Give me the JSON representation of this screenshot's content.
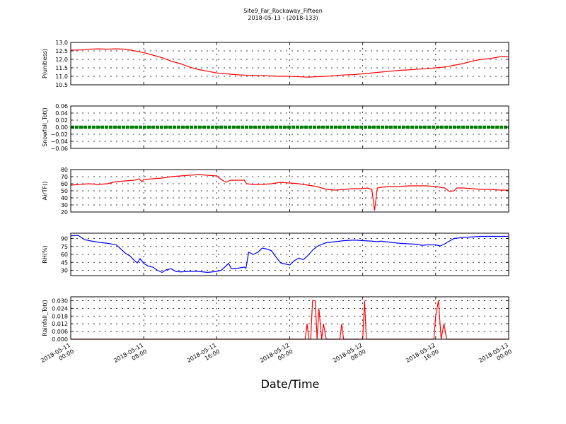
{
  "figure": {
    "title_line1": "Site9_Far_Rockaway_Fifteen",
    "title_line2": "2018-05-13 - (2018-133)",
    "xlabel": "Date/Time"
  },
  "chart_data": {
    "type": "line",
    "x_tick_labels": [
      [
        "2018-05-11",
        "00:00"
      ],
      [
        "2018-05-11",
        "08:00"
      ],
      [
        "2018-05-11",
        "16:00"
      ],
      [
        "2018-05-12",
        "00:00"
      ],
      [
        "2018-05-12",
        "08:00"
      ],
      [
        "2018-05-12",
        "16:00"
      ],
      [
        "2018-05-13",
        "00:00"
      ]
    ],
    "x_range_hours": [
      0,
      48
    ],
    "grid": true,
    "panels": [
      {
        "ylabel": "P(unitless)",
        "ylim": [
          10.5,
          13.0
        ],
        "yticks": [
          "10.5",
          "11.0",
          "11.5",
          "12.0",
          "12.5",
          "13.0"
        ],
        "color": "#ff0000",
        "style": "line",
        "points": [
          [
            0,
            12.55
          ],
          [
            1,
            12.55
          ],
          [
            2,
            12.6
          ],
          [
            3,
            12.62
          ],
          [
            4,
            12.6
          ],
          [
            5,
            12.62
          ],
          [
            6,
            12.6
          ],
          [
            7,
            12.5
          ],
          [
            8,
            12.4
          ],
          [
            9,
            12.25
          ],
          [
            10,
            12.1
          ],
          [
            11,
            11.9
          ],
          [
            12,
            11.75
          ],
          [
            13,
            11.55
          ],
          [
            14,
            11.4
          ],
          [
            15,
            11.3
          ],
          [
            16,
            11.2
          ],
          [
            17,
            11.15
          ],
          [
            18,
            11.1
          ],
          [
            19,
            11.07
          ],
          [
            20,
            11.05
          ],
          [
            21,
            11.05
          ],
          [
            22,
            11.02
          ],
          [
            23,
            11.0
          ],
          [
            24,
            11.0
          ],
          [
            25,
            10.98
          ],
          [
            26,
            10.95
          ],
          [
            27,
            10.98
          ],
          [
            28,
            11.0
          ],
          [
            29,
            11.05
          ],
          [
            30,
            11.08
          ],
          [
            31,
            11.1
          ],
          [
            32,
            11.15
          ],
          [
            33,
            11.2
          ],
          [
            34,
            11.25
          ],
          [
            35,
            11.3
          ],
          [
            36,
            11.35
          ],
          [
            37,
            11.38
          ],
          [
            38,
            11.42
          ],
          [
            39,
            11.45
          ],
          [
            40,
            11.5
          ],
          [
            41,
            11.55
          ],
          [
            42,
            11.65
          ],
          [
            43,
            11.75
          ],
          [
            44,
            11.9
          ],
          [
            45,
            12.0
          ],
          [
            46,
            12.05
          ],
          [
            47,
            12.15
          ],
          [
            48,
            12.15
          ]
        ]
      },
      {
        "ylabel": "Snowfall_Tot()",
        "ylim": [
          -0.06,
          0.06
        ],
        "yticks": [
          "−0.06",
          "−0.04",
          "−0.02",
          "0.00",
          "0.02",
          "0.04",
          "0.06"
        ],
        "color": "#008000",
        "style": "markers",
        "points": [
          [
            0,
            0
          ],
          [
            48,
            0
          ]
        ]
      },
      {
        "ylabel": "AirTF()",
        "ylim": [
          20,
          80
        ],
        "yticks": [
          "20",
          "30",
          "40",
          "50",
          "60",
          "70",
          "80"
        ],
        "color": "#ff0000",
        "style": "line",
        "points": [
          [
            0,
            58
          ],
          [
            1,
            59
          ],
          [
            2,
            60
          ],
          [
            3,
            59
          ],
          [
            4,
            60
          ],
          [
            5,
            63
          ],
          [
            6,
            64
          ],
          [
            7,
            65
          ],
          [
            7.5,
            67
          ],
          [
            7.8,
            63
          ],
          [
            8,
            66
          ],
          [
            9,
            67
          ],
          [
            10,
            68
          ],
          [
            11,
            70
          ],
          [
            12,
            71
          ],
          [
            13,
            72
          ],
          [
            14,
            73
          ],
          [
            15,
            72
          ],
          [
            16,
            71
          ],
          [
            16.5,
            66
          ],
          [
            17,
            62
          ],
          [
            17.5,
            65
          ],
          [
            18,
            65
          ],
          [
            19,
            65
          ],
          [
            19.3,
            60
          ],
          [
            20,
            59
          ],
          [
            21,
            59
          ],
          [
            22,
            60
          ],
          [
            23,
            62
          ],
          [
            24,
            61
          ],
          [
            25,
            60
          ],
          [
            26,
            58
          ],
          [
            27,
            56
          ],
          [
            28,
            52
          ],
          [
            29,
            51
          ],
          [
            30,
            52
          ],
          [
            31,
            53
          ],
          [
            32,
            53
          ],
          [
            32.5,
            54
          ],
          [
            33,
            52
          ],
          [
            33.3,
            22
          ],
          [
            33.6,
            54
          ],
          [
            34,
            55
          ],
          [
            35,
            56
          ],
          [
            36,
            56
          ],
          [
            37,
            57
          ],
          [
            38,
            57
          ],
          [
            39,
            57
          ],
          [
            40,
            56
          ],
          [
            41,
            54
          ],
          [
            41.5,
            49
          ],
          [
            42,
            50
          ],
          [
            42.3,
            54
          ],
          [
            43,
            54
          ],
          [
            44,
            53
          ],
          [
            45,
            52
          ],
          [
            46,
            52
          ],
          [
            47,
            51
          ],
          [
            48,
            51
          ]
        ]
      },
      {
        "ylabel": "RH(%)",
        "ylim": [
          20,
          100
        ],
        "yticks": [
          "30",
          "45",
          "60",
          "75",
          "90"
        ],
        "color": "#0000ff",
        "style": "line",
        "points": [
          [
            0,
            95
          ],
          [
            0.8,
            96
          ],
          [
            1.5,
            88
          ],
          [
            2,
            86
          ],
          [
            3,
            83
          ],
          [
            4,
            81
          ],
          [
            5,
            78
          ],
          [
            5.5,
            70
          ],
          [
            6,
            62
          ],
          [
            6.5,
            57
          ],
          [
            7,
            48
          ],
          [
            7.3,
            44
          ],
          [
            7.6,
            52
          ],
          [
            8,
            43
          ],
          [
            8.5,
            38
          ],
          [
            9,
            36
          ],
          [
            9.5,
            30
          ],
          [
            10,
            26
          ],
          [
            10.5,
            31
          ],
          [
            11,
            33
          ],
          [
            11.5,
            28
          ],
          [
            12,
            27
          ],
          [
            13,
            28
          ],
          [
            14,
            28
          ],
          [
            14.5,
            27
          ],
          [
            15,
            26
          ],
          [
            15.5,
            27
          ],
          [
            16,
            28
          ],
          [
            16.5,
            30
          ],
          [
            17,
            38
          ],
          [
            17.3,
            43
          ],
          [
            17.6,
            33
          ],
          [
            18,
            33
          ],
          [
            19,
            36
          ],
          [
            19.2,
            34
          ],
          [
            19.5,
            64
          ],
          [
            20,
            60
          ],
          [
            20.5,
            64
          ],
          [
            21,
            72
          ],
          [
            21.5,
            70
          ],
          [
            22,
            67
          ],
          [
            22.5,
            55
          ],
          [
            23,
            44
          ],
          [
            23.5,
            42
          ],
          [
            24,
            40
          ],
          [
            24.5,
            48
          ],
          [
            25,
            53
          ],
          [
            25.5,
            50
          ],
          [
            26,
            58
          ],
          [
            26.5,
            68
          ],
          [
            27,
            75
          ],
          [
            27.5,
            79
          ],
          [
            28,
            82
          ],
          [
            29,
            84
          ],
          [
            30,
            86
          ],
          [
            31,
            87
          ],
          [
            32,
            86
          ],
          [
            33,
            85
          ],
          [
            33.5,
            84
          ],
          [
            34,
            85
          ],
          [
            35,
            83
          ],
          [
            36,
            81
          ],
          [
            37,
            80
          ],
          [
            38,
            79
          ],
          [
            38.5,
            77
          ],
          [
            39,
            78
          ],
          [
            40,
            78
          ],
          [
            40.5,
            76
          ],
          [
            41,
            80
          ],
          [
            42,
            90
          ],
          [
            43,
            92
          ],
          [
            44,
            93
          ],
          [
            45,
            94
          ],
          [
            46,
            94
          ],
          [
            47,
            94
          ],
          [
            48,
            94
          ]
        ]
      },
      {
        "ylabel": "Rainfall_Tot()",
        "ylim": [
          0,
          0.033
        ],
        "yticks": [
          "0.000",
          "0.006",
          "0.012",
          "0.018",
          "0.024",
          "0.030"
        ],
        "color": "#ff0000",
        "style": "line",
        "points": [
          [
            0,
            0
          ],
          [
            25.7,
            0
          ],
          [
            25.9,
            0.012
          ],
          [
            26.1,
            0
          ],
          [
            26.3,
            0
          ],
          [
            26.5,
            0.03
          ],
          [
            26.8,
            0.03
          ],
          [
            27.0,
            0
          ],
          [
            27.2,
            0.024
          ],
          [
            27.5,
            0
          ],
          [
            27.7,
            0.012
          ],
          [
            28.0,
            0
          ],
          [
            29.5,
            0
          ],
          [
            29.7,
            0.012
          ],
          [
            29.9,
            0
          ],
          [
            32.0,
            0
          ],
          [
            32.2,
            0.03
          ],
          [
            32.4,
            0
          ],
          [
            39.8,
            0
          ],
          [
            40.0,
            0.018
          ],
          [
            40.3,
            0.03
          ],
          [
            40.6,
            0
          ],
          [
            40.9,
            0.012
          ],
          [
            41.2,
            0
          ],
          [
            48,
            0
          ]
        ]
      }
    ]
  }
}
